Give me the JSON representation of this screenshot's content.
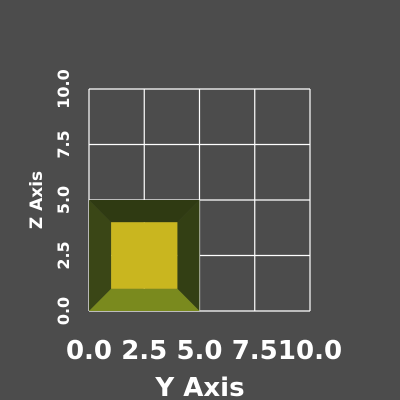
{
  "chart_data": {
    "type": "3d-render",
    "background_color": "#4c4c4c",
    "xlabel": "Y Axis",
    "ylabel": "Z Axis",
    "xlim": [
      0,
      10
    ],
    "ylim": [
      0,
      10
    ],
    "x_ticks": [
      "0.0",
      "2.5",
      "5.0",
      "7.5",
      "10.0"
    ],
    "y_ticks": [
      "0.0",
      "2.5",
      "5.0",
      "7.5",
      "10.0"
    ],
    "tick_values": [
      0,
      2.5,
      5,
      7.5,
      10
    ],
    "grid": true,
    "grid_color": "#ffffff",
    "object": {
      "shape": "beveled-square",
      "extent": {
        "y": [
          0,
          5
        ],
        "z": [
          0,
          5
        ]
      },
      "inner_face": {
        "y": [
          1,
          4
        ],
        "z": [
          1,
          4
        ]
      },
      "colors": {
        "front": "#c9b61f",
        "top": "#2f3a12",
        "left": "#3a4616",
        "right": "#333f14",
        "bottom": "#7a8a1e"
      }
    }
  }
}
